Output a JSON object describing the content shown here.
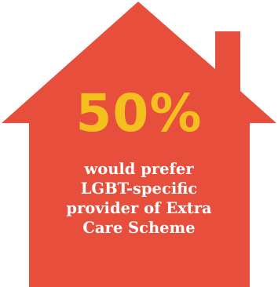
{
  "colors": {
    "house": "#e84e3c",
    "stat": "#f4c01e",
    "caption": "#ffffff",
    "background": "#ffffff"
  },
  "infographic": {
    "stat_value": "50%",
    "caption_lines": [
      "would prefer",
      "LGBT-specific",
      "provider of Extra",
      "Care Scheme"
    ]
  }
}
